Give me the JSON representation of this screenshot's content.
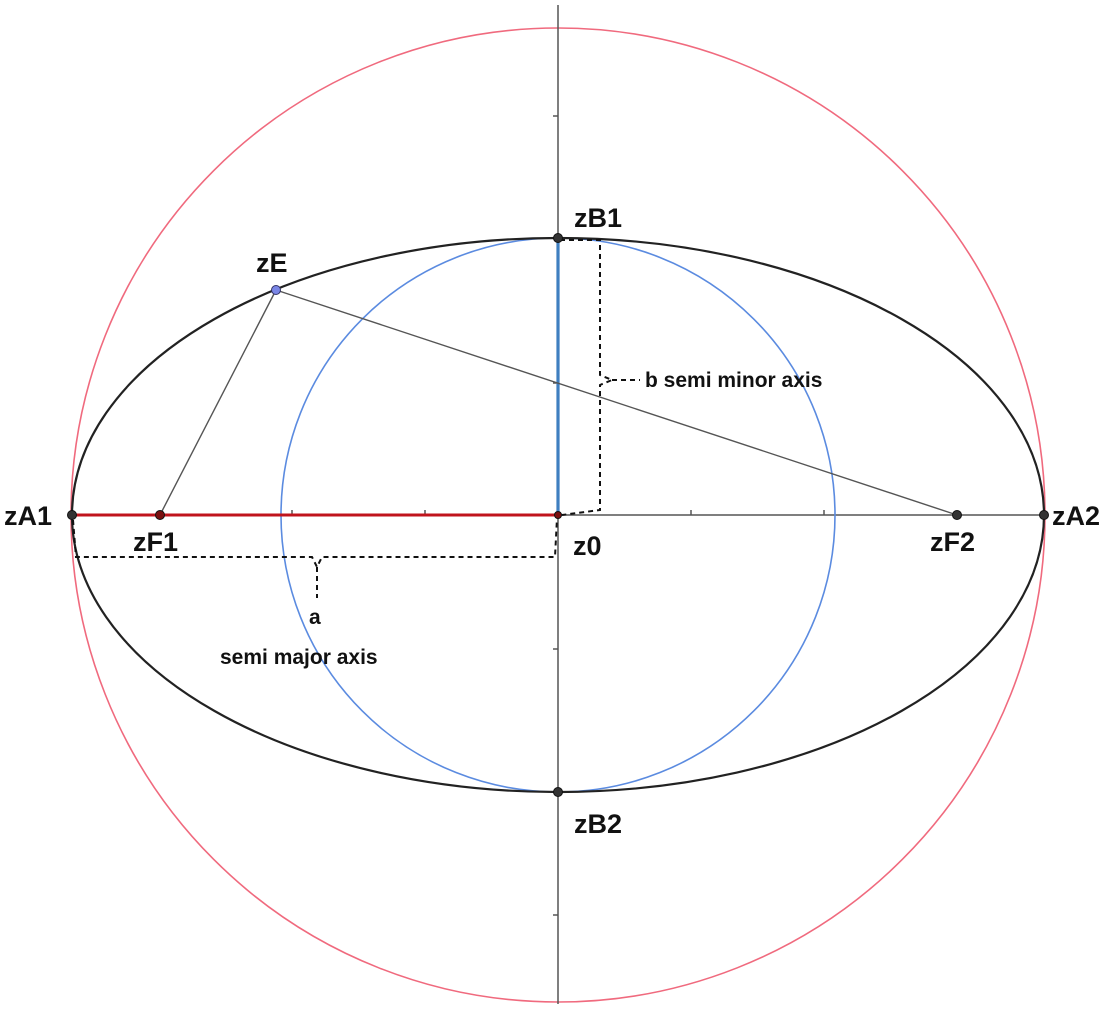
{
  "points": {
    "A1": "zA1",
    "A2": "zA2",
    "B1": "zB1",
    "B2": "zB2",
    "F1": "zF1",
    "F2": "zF2",
    "E": "zE",
    "O": "z0"
  },
  "annotations": {
    "semi_minor": "b semi minor axis",
    "semi_major_letter": "a",
    "semi_major_text": "semi major axis"
  },
  "colors": {
    "ellipse": "#222222",
    "outer_circle": "#f06a7e",
    "inner_circle": "#5b8be0",
    "semi_major_segment": "#c0141c",
    "semi_minor_segment": "#3f7fc0",
    "axes": "#555555",
    "point_fill": "#333333",
    "point_e_fill": "#7a86e6"
  }
}
